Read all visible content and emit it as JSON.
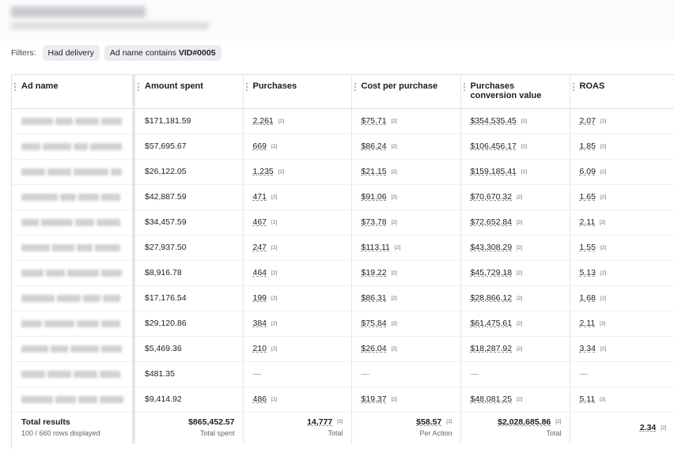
{
  "filters": {
    "label": "Filters:",
    "chips": [
      {
        "text": "Had delivery"
      },
      {
        "prefix": "Ad name contains ",
        "bold": "VID#0005"
      }
    ]
  },
  "table": {
    "columns": [
      "Ad name",
      "Amount spent",
      "Purchases",
      "Cost per purchase",
      "Purchases conversion value",
      "ROAS"
    ],
    "rows": [
      {
        "amount": "$171,181.59",
        "purchases": "2,261",
        "cpp": "$75.71",
        "value": "$354,535.45",
        "roas": "2.07"
      },
      {
        "amount": "$57,695.67",
        "purchases": "669",
        "cpp": "$86.24",
        "value": "$106,456.17",
        "roas": "1.85"
      },
      {
        "amount": "$26,122.05",
        "purchases": "1,235",
        "cpp": "$21.15",
        "value": "$159,185.41",
        "roas": "6.09"
      },
      {
        "amount": "$42,887.59",
        "purchases": "471",
        "cpp": "$91.06",
        "value": "$70,670.32",
        "roas": "1.65"
      },
      {
        "amount": "$34,457.59",
        "purchases": "467",
        "cpp": "$73.78",
        "value": "$72,652.84",
        "roas": "2.11"
      },
      {
        "amount": "$27,937.50",
        "purchases": "247",
        "cpp": "$113.11",
        "value": "$43,308.29",
        "roas": "1.55"
      },
      {
        "amount": "$8,916.78",
        "purchases": "464",
        "cpp": "$19.22",
        "value": "$45,729.18",
        "roas": "5.13"
      },
      {
        "amount": "$17,176.54",
        "purchases": "199",
        "cpp": "$86.31",
        "value": "$28,866.12",
        "roas": "1.68"
      },
      {
        "amount": "$29,120.86",
        "purchases": "384",
        "cpp": "$75.84",
        "value": "$61,475.61",
        "roas": "2.11"
      },
      {
        "amount": "$5,469.36",
        "purchases": "210",
        "cpp": "$26.04",
        "value": "$18,287.92",
        "roas": "3.34"
      },
      {
        "amount": "$481.35",
        "purchases": "—",
        "cpp": "—",
        "value": "—",
        "roas": "—"
      },
      {
        "amount": "$9,414.92",
        "purchases": "486",
        "cpp": "$19.37",
        "value": "$48,081.25",
        "roas": "5.11"
      }
    ],
    "ref_marker": "[2]",
    "totals": {
      "title": "Total results",
      "rows_displayed": "100 / 660 rows displayed",
      "amount": "$865,452.57",
      "amount_sub": "Total spent",
      "purchases": "14,777",
      "purchases_sub": "Total",
      "cpp": "$58.57",
      "cpp_sub": "Per Action",
      "value": "$2,028,685.86",
      "value_sub": "Total",
      "roas": "2.34"
    }
  }
}
